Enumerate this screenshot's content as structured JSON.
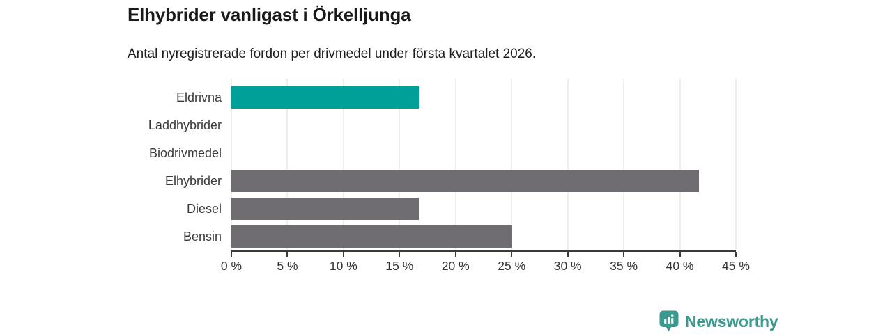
{
  "chart_data": {
    "type": "bar",
    "orientation": "horizontal",
    "title": "Elhybrider vanligast i Örkelljunga",
    "subtitle": "Antal nyregistrerade fordon per drivmedel under första kvartalet 2026.",
    "categories": [
      "Eldrivna",
      "Laddhybrider",
      "Biodrivmedel",
      "Elhybrider",
      "Diesel",
      "Bensin"
    ],
    "values": [
      16.7,
      0,
      0,
      41.7,
      16.7,
      25
    ],
    "unit": "%",
    "xlim": [
      0,
      45
    ],
    "x_tick_values": [
      0,
      5,
      10,
      15,
      20,
      25,
      30,
      35,
      40,
      45
    ],
    "x_tick_labels": [
      "0 %",
      "5 %",
      "10 %",
      "15 %",
      "20 %",
      "25 %",
      "30 %",
      "35 %",
      "40 %",
      "45 %"
    ],
    "grid": true,
    "legend": "none",
    "highlight_category": "Eldrivna",
    "bar_color_default": "#6f6d71",
    "bar_color_highlight": "#00a099",
    "gridline_color": "#dcdcdc",
    "axis_color": "#3a3a3a"
  },
  "footer": {
    "brand": "Newsworthy",
    "brand_color": "#3b9a90",
    "brand_icon": "bar-chart-speech-bubble"
  }
}
